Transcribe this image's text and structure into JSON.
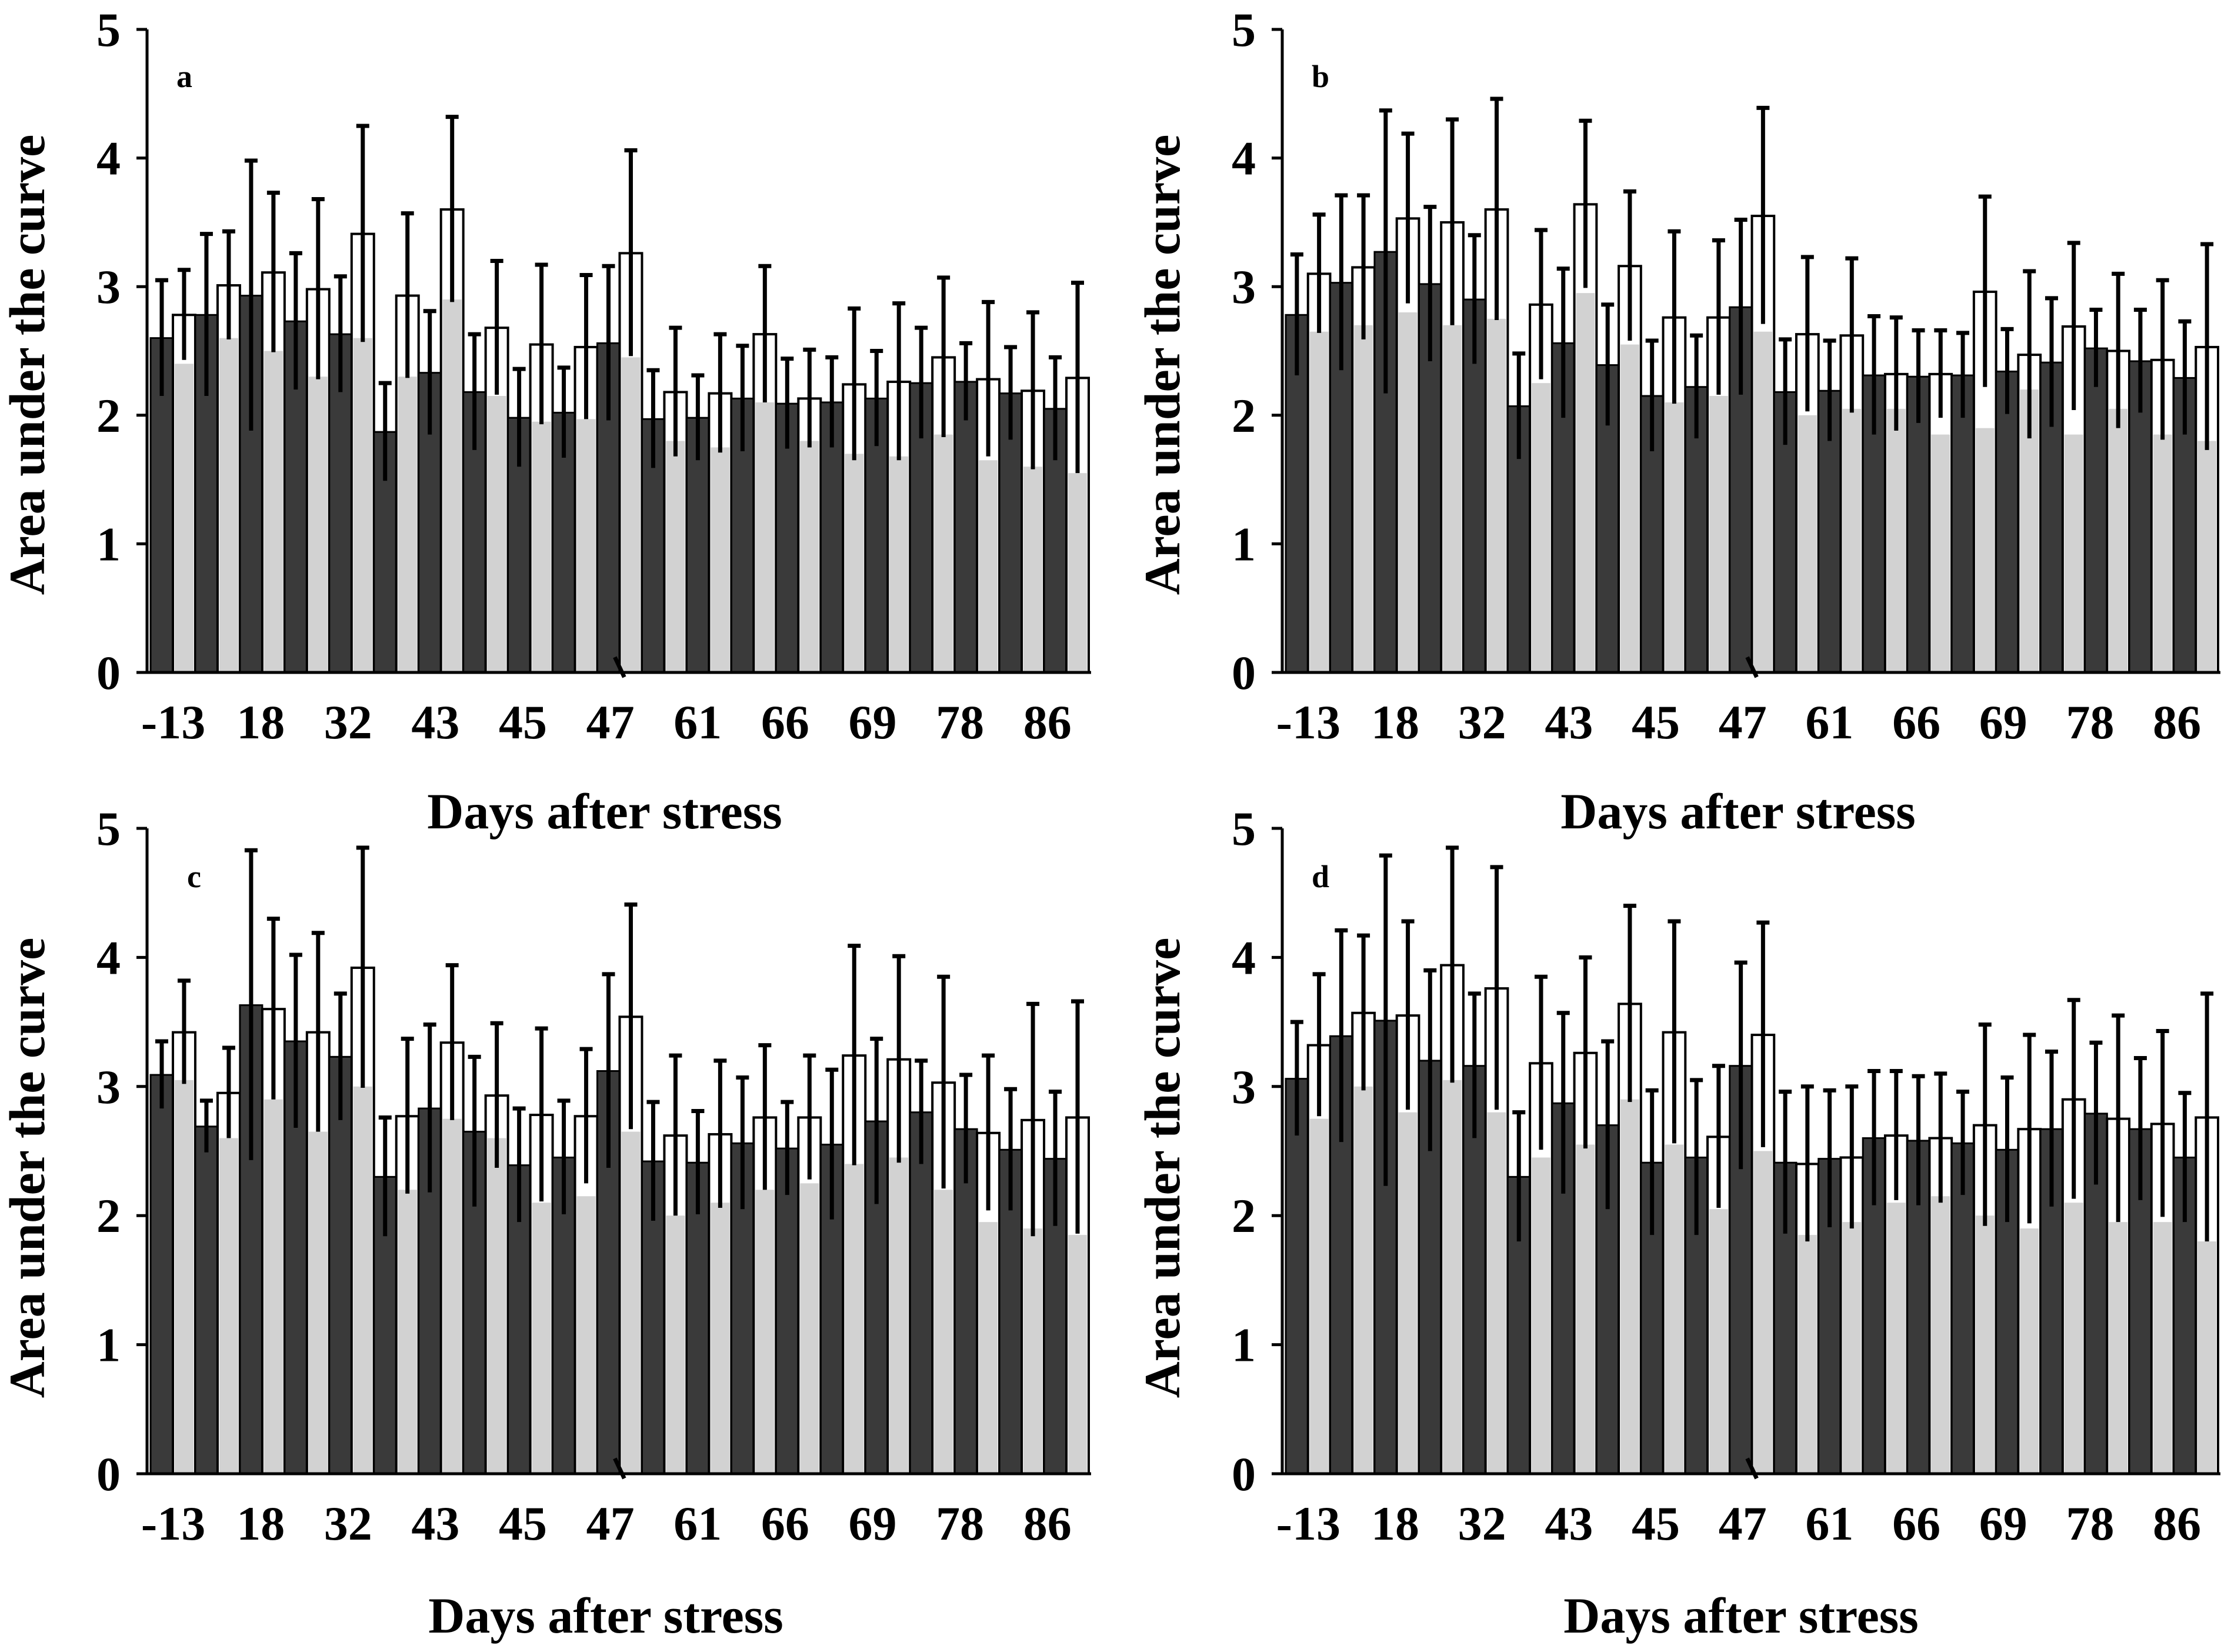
{
  "colors": {
    "series_dark": "#3a3a3a",
    "series_light": "#d2d2d2",
    "series_white": "#ffffff",
    "stroke": "#000000"
  },
  "chart_data": [
    {
      "type": "bar",
      "panel_label": "a",
      "xlabel": "Days after stress",
      "ylabel": "Area under the curve",
      "ylim": [
        0,
        5
      ],
      "yticks": [
        "0",
        "1",
        "2",
        "3",
        "4",
        "5"
      ],
      "xtick_labels": [
        "-13",
        "18",
        "32",
        "43",
        "45",
        "47",
        "61",
        "66",
        "69",
        "78",
        "86"
      ],
      "axis_break": "after 47",
      "series": [
        {
          "name": "dark",
          "fill": "dark",
          "values": [
            2.6,
            2.78,
            2.93,
            2.73,
            2.63,
            1.87,
            2.33,
            2.18,
            1.98,
            2.02,
            2.56,
            1.97,
            1.98,
            2.13,
            2.09,
            2.1,
            2.13,
            2.25,
            2.26,
            2.17,
            2.05
          ],
          "errors": [
            0.45,
            0.63,
            1.05,
            0.53,
            0.45,
            0.38,
            0.48,
            0.45,
            0.38,
            0.35,
            0.6,
            0.38,
            0.33,
            0.41,
            0.35,
            0.35,
            0.37,
            0.43,
            0.3,
            0.36,
            0.4
          ]
        },
        {
          "name": "light",
          "fill": "light",
          "values": [
            2.4,
            2.6,
            2.5,
            2.3,
            2.6,
            2.3,
            2.9,
            2.15,
            1.95,
            1.97,
            2.45,
            1.8,
            1.75,
            2.1,
            1.8,
            1.7,
            1.68,
            1.85,
            1.65,
            1.6,
            1.55
          ]
        },
        {
          "name": "white",
          "fill": "white",
          "values": [
            2.78,
            3.01,
            3.11,
            2.98,
            3.41,
            2.93,
            3.6,
            2.68,
            2.55,
            2.53,
            3.26,
            2.18,
            2.17,
            2.63,
            2.13,
            2.24,
            2.26,
            2.45,
            2.28,
            2.19,
            2.29
          ],
          "errors": [
            0.35,
            0.42,
            0.62,
            0.7,
            0.84,
            0.64,
            0.72,
            0.52,
            0.62,
            0.56,
            0.8,
            0.5,
            0.46,
            0.53,
            0.38,
            0.59,
            0.61,
            0.62,
            0.6,
            0.61,
            0.74
          ]
        }
      ]
    },
    {
      "type": "bar",
      "panel_label": "b",
      "xlabel": "Days after stress",
      "ylabel": "Area under the curve",
      "ylim": [
        0,
        5
      ],
      "yticks": [
        "0",
        "1",
        "2",
        "3",
        "4",
        "5"
      ],
      "xtick_labels": [
        "-13",
        "18",
        "32",
        "43",
        "45",
        "47",
        "61",
        "66",
        "69",
        "78",
        "86"
      ],
      "axis_break": "after 47",
      "series": [
        {
          "name": "dark",
          "fill": "dark",
          "values": [
            2.78,
            3.03,
            3.27,
            3.02,
            2.9,
            2.07,
            2.56,
            2.39,
            2.15,
            2.22,
            2.84,
            2.18,
            2.19,
            2.31,
            2.3,
            2.31,
            2.34,
            2.41,
            2.52,
            2.42,
            2.29
          ],
          "errors": [
            0.47,
            0.68,
            1.1,
            0.6,
            0.5,
            0.41,
            0.58,
            0.47,
            0.43,
            0.4,
            0.68,
            0.41,
            0.39,
            0.46,
            0.36,
            0.33,
            0.33,
            0.5,
            0.3,
            0.4,
            0.44
          ]
        },
        {
          "name": "light",
          "fill": "light",
          "values": [
            2.65,
            2.7,
            2.8,
            2.7,
            2.75,
            2.25,
            2.95,
            2.55,
            2.1,
            2.15,
            2.65,
            2.0,
            2.05,
            2.05,
            1.85,
            1.9,
            2.2,
            1.85,
            2.05,
            1.85,
            1.8
          ]
        },
        {
          "name": "white",
          "fill": "white",
          "values": [
            3.1,
            3.15,
            3.53,
            3.5,
            3.6,
            2.86,
            3.64,
            3.16,
            2.76,
            2.76,
            3.55,
            2.63,
            2.62,
            2.32,
            2.32,
            2.96,
            2.47,
            2.69,
            2.5,
            2.43,
            2.53
          ],
          "errors": [
            0.46,
            0.56,
            0.66,
            0.8,
            0.86,
            0.58,
            0.65,
            0.58,
            0.67,
            0.6,
            0.84,
            0.6,
            0.6,
            0.44,
            0.34,
            0.74,
            0.65,
            0.65,
            0.6,
            0.62,
            0.8
          ]
        }
      ]
    },
    {
      "type": "bar",
      "panel_label": "c",
      "xlabel": "Days after stress",
      "ylabel": "Area under the curve",
      "ylim": [
        0,
        5
      ],
      "yticks": [
        "0",
        "1",
        "2",
        "3",
        "4",
        "5"
      ],
      "xtick_labels": [
        "-13",
        "18",
        "32",
        "43",
        "45",
        "47",
        "61",
        "66",
        "69",
        "78",
        "86"
      ],
      "axis_break": "after 47",
      "series": [
        {
          "name": "dark",
          "fill": "dark",
          "values": [
            3.09,
            2.69,
            3.63,
            3.35,
            3.23,
            2.3,
            2.83,
            2.65,
            2.39,
            2.45,
            3.12,
            2.42,
            2.41,
            2.56,
            2.52,
            2.55,
            2.73,
            2.8,
            2.67,
            2.51,
            2.44
          ],
          "errors": [
            0.26,
            0.2,
            1.2,
            0.67,
            0.49,
            0.46,
            0.65,
            0.58,
            0.44,
            0.44,
            0.75,
            0.46,
            0.4,
            0.51,
            0.36,
            0.58,
            0.64,
            0.4,
            0.42,
            0.47,
            0.52
          ]
        },
        {
          "name": "light",
          "fill": "light",
          "values": [
            3.05,
            2.6,
            2.9,
            2.65,
            3.0,
            2.2,
            2.75,
            2.6,
            2.1,
            2.15,
            2.65,
            2.0,
            2.1,
            2.2,
            2.25,
            2.4,
            2.45,
            2.2,
            1.95,
            1.9,
            1.85
          ]
        },
        {
          "name": "white",
          "fill": "white",
          "values": [
            3.42,
            2.95,
            3.6,
            3.42,
            3.92,
            2.77,
            3.34,
            2.93,
            2.78,
            2.77,
            3.54,
            2.62,
            2.63,
            2.76,
            2.76,
            3.24,
            3.21,
            3.03,
            2.64,
            2.74,
            2.76
          ],
          "errors": [
            0.4,
            0.35,
            0.7,
            0.77,
            0.93,
            0.6,
            0.6,
            0.56,
            0.67,
            0.52,
            0.87,
            0.62,
            0.57,
            0.56,
            0.48,
            0.85,
            0.8,
            0.82,
            0.6,
            0.9,
            0.9
          ]
        }
      ]
    },
    {
      "type": "bar",
      "panel_label": "d",
      "xlabel": "Days after stress",
      "ylabel": "Area under the curve",
      "ylim": [
        0,
        5
      ],
      "yticks": [
        "0",
        "1",
        "2",
        "3",
        "4",
        "5"
      ],
      "xtick_labels": [
        "-13",
        "18",
        "32",
        "43",
        "45",
        "47",
        "61",
        "66",
        "69",
        "78",
        "86"
      ],
      "axis_break": "after 47",
      "series": [
        {
          "name": "dark",
          "fill": "dark",
          "values": [
            3.06,
            3.39,
            3.51,
            3.2,
            3.16,
            2.3,
            2.87,
            2.7,
            2.41,
            2.45,
            3.16,
            2.41,
            2.44,
            2.6,
            2.58,
            2.56,
            2.51,
            2.67,
            2.79,
            2.67,
            2.45
          ],
          "errors": [
            0.44,
            0.82,
            1.28,
            0.7,
            0.56,
            0.5,
            0.7,
            0.65,
            0.56,
            0.6,
            0.8,
            0.55,
            0.53,
            0.52,
            0.5,
            0.4,
            0.56,
            0.6,
            0.55,
            0.55,
            0.5
          ]
        },
        {
          "name": "light",
          "fill": "light",
          "values": [
            2.75,
            3.0,
            2.8,
            3.05,
            2.8,
            2.45,
            2.55,
            2.9,
            2.55,
            2.05,
            2.5,
            1.85,
            1.95,
            2.1,
            2.15,
            2.0,
            1.9,
            2.1,
            1.95,
            1.95,
            1.8
          ]
        },
        {
          "name": "white",
          "fill": "white",
          "values": [
            3.32,
            3.57,
            3.55,
            3.94,
            3.76,
            3.18,
            3.26,
            3.64,
            3.42,
            2.61,
            3.4,
            2.4,
            2.45,
            2.62,
            2.6,
            2.7,
            2.67,
            2.9,
            2.75,
            2.71,
            2.76
          ],
          "errors": [
            0.55,
            0.6,
            0.73,
            0.91,
            0.94,
            0.67,
            0.74,
            0.76,
            0.86,
            0.55,
            0.87,
            0.6,
            0.55,
            0.5,
            0.5,
            0.78,
            0.73,
            0.77,
            0.8,
            0.72,
            0.96
          ]
        }
      ]
    }
  ]
}
